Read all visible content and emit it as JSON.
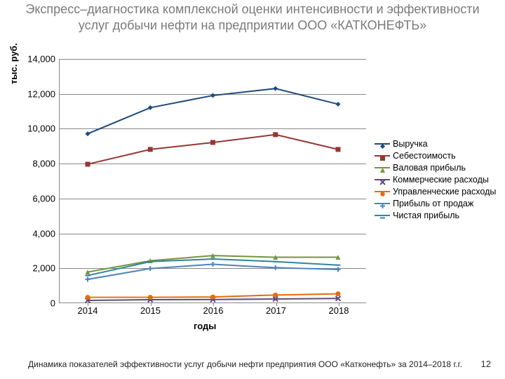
{
  "title": "Экспресс–диагностика  комплексной оценки интенсивности и эффективности услуг добычи нефти на предприятии ООО «КАТКОНЕФТЬ»",
  "caption": "Динамика показателей эффективности услуг добычи нефти предприятия ООО «Катконефть» за 2014–2018 г.г.",
  "page_number": "12",
  "chart": {
    "type": "line",
    "ylabel": "тыс. руб.",
    "xlabel": "годы",
    "categories": [
      "2014",
      "2015",
      "2016",
      "2017",
      "2018"
    ],
    "ylim": [
      0,
      14000
    ],
    "ytick_step": 2000,
    "yticks": [
      "0",
      "2,000",
      "4,000",
      "6,000",
      "8,000",
      "10,000",
      "12,000",
      "14,000"
    ],
    "background_color": "#ffffff",
    "grid_color": "#888888",
    "axis_color": "#888888",
    "tick_fontsize": 13,
    "label_fontsize": 13,
    "line_width": 2,
    "marker_size": 7,
    "series": [
      {
        "name": "Выручка",
        "color": "#1f497d",
        "marker": "diamond",
        "values": [
          9700,
          11200,
          11900,
          12300,
          11400
        ]
      },
      {
        "name": "Себестоимость",
        "color": "#953735",
        "marker": "square",
        "values": [
          7950,
          8800,
          9200,
          9650,
          8800
        ]
      },
      {
        "name": "Валовая прибыль",
        "color": "#77933c",
        "marker": "triangle",
        "values": [
          1750,
          2400,
          2700,
          2600,
          2600
        ]
      },
      {
        "name": "Коммерческие расходы",
        "color": "#604a7b",
        "marker": "x",
        "values": [
          120,
          160,
          170,
          200,
          230
        ]
      },
      {
        "name": "Управленческие расходы",
        "color": "#e46c0a",
        "marker": "circle",
        "values": [
          300,
          300,
          320,
          430,
          500
        ]
      },
      {
        "name": "Прибыль от продаж",
        "color": "#4f81bd",
        "marker": "plus",
        "values": [
          1330,
          1950,
          2200,
          2000,
          1900
        ]
      },
      {
        "name": "Чистая прибыль",
        "color": "#31859c",
        "marker": "bar",
        "values": [
          1550,
          2350,
          2500,
          2350,
          2150
        ]
      }
    ]
  }
}
